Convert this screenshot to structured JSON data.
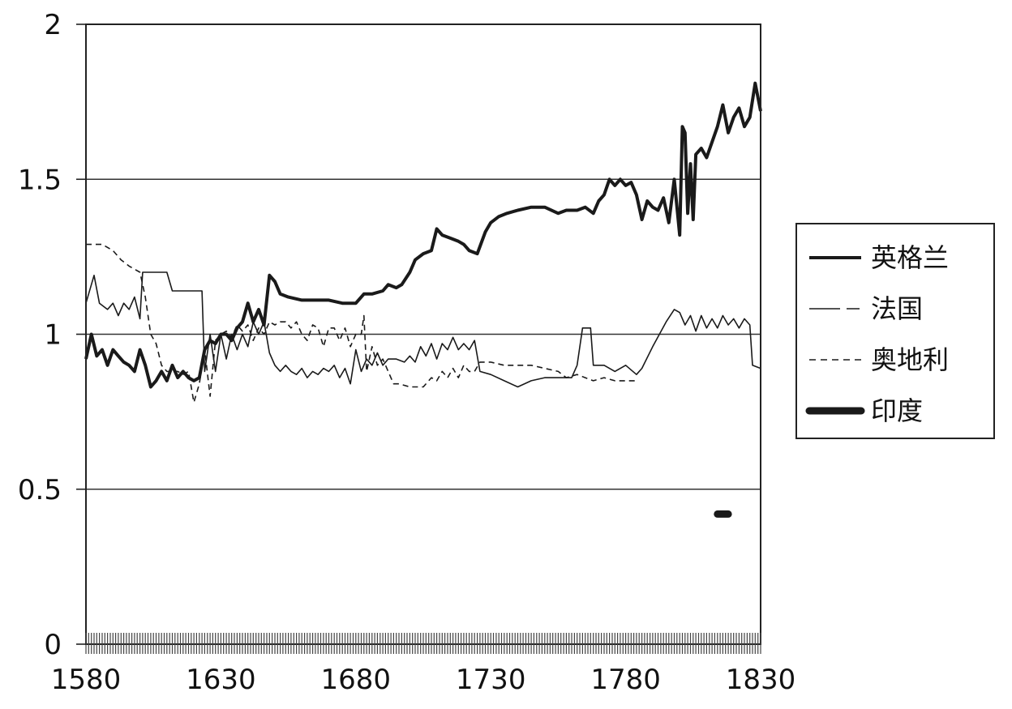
{
  "chart_data": {
    "type": "line",
    "title": "",
    "xlabel": "",
    "ylabel": "",
    "xlim": [
      1580,
      1830
    ],
    "ylim": [
      0,
      2
    ],
    "x_ticks": [
      "1580",
      "1630",
      "1680",
      "1730",
      "1780",
      "1830"
    ],
    "y_ticks": [
      "0",
      "0.5",
      "1",
      "1.5",
      "2"
    ],
    "grid": "horizontal",
    "legend_position": "right",
    "series": [
      {
        "name": "英格兰",
        "style": "solid-medium",
        "color": "#1a1a1a",
        "points": [
          [
            1580,
            0.92
          ],
          [
            1582,
            1.0
          ],
          [
            1584,
            0.93
          ],
          [
            1586,
            0.95
          ],
          [
            1588,
            0.9
          ],
          [
            1590,
            0.95
          ],
          [
            1592,
            0.93
          ],
          [
            1594,
            0.91
          ],
          [
            1596,
            0.9
          ],
          [
            1598,
            0.88
          ],
          [
            1600,
            0.95
          ],
          [
            1602,
            0.9
          ],
          [
            1604,
            0.83
          ],
          [
            1606,
            0.85
          ],
          [
            1608,
            0.88
          ],
          [
            1610,
            0.85
          ],
          [
            1612,
            0.9
          ],
          [
            1614,
            0.86
          ],
          [
            1616,
            0.88
          ],
          [
            1618,
            0.86
          ],
          [
            1620,
            0.85
          ],
          [
            1622,
            0.86
          ],
          [
            1624,
            0.95
          ],
          [
            1626,
            0.98
          ],
          [
            1628,
            0.97
          ],
          [
            1630,
            1.0
          ],
          [
            1632,
            1.0
          ],
          [
            1634,
            0.98
          ],
          [
            1636,
            1.02
          ],
          [
            1638,
            1.04
          ],
          [
            1640,
            1.1
          ],
          [
            1642,
            1.04
          ],
          [
            1644,
            1.08
          ],
          [
            1646,
            1.03
          ],
          [
            1648,
            1.19
          ],
          [
            1650,
            1.17
          ],
          [
            1652,
            1.13
          ],
          [
            1655,
            1.12
          ],
          [
            1660,
            1.11
          ],
          [
            1665,
            1.11
          ],
          [
            1670,
            1.11
          ],
          [
            1675,
            1.1
          ],
          [
            1680,
            1.1
          ],
          [
            1683,
            1.13
          ],
          [
            1686,
            1.13
          ],
          [
            1690,
            1.14
          ],
          [
            1692,
            1.16
          ],
          [
            1695,
            1.15
          ],
          [
            1697,
            1.16
          ],
          [
            1700,
            1.2
          ],
          [
            1702,
            1.24
          ],
          [
            1705,
            1.26
          ],
          [
            1708,
            1.27
          ],
          [
            1710,
            1.34
          ],
          [
            1712,
            1.32
          ],
          [
            1715,
            1.31
          ],
          [
            1718,
            1.3
          ],
          [
            1720,
            1.29
          ],
          [
            1722,
            1.27
          ],
          [
            1725,
            1.26
          ],
          [
            1728,
            1.33
          ],
          [
            1730,
            1.36
          ],
          [
            1733,
            1.38
          ],
          [
            1736,
            1.39
          ],
          [
            1740,
            1.4
          ],
          [
            1745,
            1.41
          ],
          [
            1750,
            1.41
          ],
          [
            1755,
            1.39
          ],
          [
            1758,
            1.4
          ],
          [
            1762,
            1.4
          ],
          [
            1765,
            1.41
          ],
          [
            1768,
            1.39
          ],
          [
            1770,
            1.43
          ],
          [
            1772,
            1.45
          ],
          [
            1774,
            1.5
          ],
          [
            1776,
            1.48
          ],
          [
            1778,
            1.5
          ],
          [
            1780,
            1.48
          ],
          [
            1782,
            1.49
          ],
          [
            1784,
            1.45
          ],
          [
            1786,
            1.37
          ],
          [
            1788,
            1.43
          ],
          [
            1790,
            1.41
          ],
          [
            1792,
            1.4
          ],
          [
            1794,
            1.44
          ],
          [
            1796,
            1.36
          ],
          [
            1798,
            1.5
          ],
          [
            1800,
            1.32
          ],
          [
            1801,
            1.67
          ],
          [
            1802,
            1.65
          ],
          [
            1803,
            1.39
          ],
          [
            1804,
            1.55
          ],
          [
            1805,
            1.37
          ],
          [
            1806,
            1.58
          ],
          [
            1808,
            1.6
          ],
          [
            1810,
            1.57
          ],
          [
            1812,
            1.62
          ],
          [
            1814,
            1.67
          ],
          [
            1816,
            1.74
          ],
          [
            1818,
            1.65
          ],
          [
            1820,
            1.7
          ],
          [
            1822,
            1.73
          ],
          [
            1824,
            1.67
          ],
          [
            1826,
            1.7
          ],
          [
            1828,
            1.81
          ],
          [
            1830,
            1.72
          ]
        ]
      },
      {
        "name": "法国",
        "style": "dash-long",
        "color": "#1a1a1a",
        "points": [
          [
            1580,
            1.1
          ],
          [
            1583,
            1.19
          ],
          [
            1585,
            1.1
          ],
          [
            1588,
            1.08
          ],
          [
            1590,
            1.1
          ],
          [
            1592,
            1.06
          ],
          [
            1594,
            1.1
          ],
          [
            1596,
            1.08
          ],
          [
            1598,
            1.12
          ],
          [
            1600,
            1.05
          ],
          [
            1601,
            1.2
          ],
          [
            1605,
            1.2
          ],
          [
            1610,
            1.2
          ],
          [
            1612,
            1.14
          ],
          [
            1615,
            1.14
          ],
          [
            1620,
            1.14
          ],
          [
            1623,
            1.14
          ],
          [
            1624,
            0.88
          ],
          [
            1626,
            1.0
          ],
          [
            1628,
            0.88
          ],
          [
            1630,
            1.0
          ],
          [
            1632,
            0.92
          ],
          [
            1634,
            1.0
          ],
          [
            1636,
            0.95
          ],
          [
            1638,
            1.0
          ],
          [
            1640,
            0.96
          ],
          [
            1642,
            1.04
          ],
          [
            1644,
            1.0
          ],
          [
            1646,
            1.04
          ],
          [
            1648,
            0.94
          ],
          [
            1650,
            0.9
          ],
          [
            1652,
            0.88
          ],
          [
            1654,
            0.9
          ],
          [
            1656,
            0.88
          ],
          [
            1658,
            0.87
          ],
          [
            1660,
            0.89
          ],
          [
            1662,
            0.86
          ],
          [
            1664,
            0.88
          ],
          [
            1666,
            0.87
          ],
          [
            1668,
            0.89
          ],
          [
            1670,
            0.88
          ],
          [
            1672,
            0.9
          ],
          [
            1674,
            0.86
          ],
          [
            1676,
            0.89
          ],
          [
            1678,
            0.84
          ],
          [
            1680,
            0.95
          ],
          [
            1682,
            0.88
          ],
          [
            1684,
            0.92
          ],
          [
            1686,
            0.9
          ],
          [
            1688,
            0.94
          ],
          [
            1690,
            0.9
          ],
          [
            1692,
            0.92
          ],
          [
            1695,
            0.92
          ],
          [
            1698,
            0.91
          ],
          [
            1700,
            0.93
          ],
          [
            1702,
            0.91
          ],
          [
            1704,
            0.96
          ],
          [
            1706,
            0.93
          ],
          [
            1708,
            0.97
          ],
          [
            1710,
            0.92
          ],
          [
            1712,
            0.97
          ],
          [
            1714,
            0.95
          ],
          [
            1716,
            0.99
          ],
          [
            1718,
            0.95
          ],
          [
            1720,
            0.97
          ],
          [
            1722,
            0.95
          ],
          [
            1724,
            0.98
          ],
          [
            1726,
            0.88
          ],
          [
            1730,
            0.87
          ],
          [
            1735,
            0.85
          ],
          [
            1740,
            0.83
          ],
          [
            1745,
            0.85
          ],
          [
            1750,
            0.86
          ],
          [
            1755,
            0.86
          ],
          [
            1760,
            0.86
          ],
          [
            1762,
            0.9
          ],
          [
            1764,
            1.02
          ],
          [
            1767,
            1.02
          ],
          [
            1768,
            0.9
          ],
          [
            1772,
            0.9
          ],
          [
            1776,
            0.88
          ],
          [
            1780,
            0.9
          ],
          [
            1784,
            0.87
          ],
          [
            1786,
            0.89
          ],
          [
            1790,
            0.96
          ],
          [
            1795,
            1.04
          ],
          [
            1798,
            1.08
          ],
          [
            1800,
            1.07
          ],
          [
            1802,
            1.03
          ],
          [
            1804,
            1.06
          ],
          [
            1806,
            1.01
          ],
          [
            1808,
            1.06
          ],
          [
            1810,
            1.02
          ],
          [
            1812,
            1.05
          ],
          [
            1814,
            1.02
          ],
          [
            1816,
            1.06
          ],
          [
            1818,
            1.03
          ],
          [
            1820,
            1.05
          ],
          [
            1822,
            1.02
          ],
          [
            1824,
            1.05
          ],
          [
            1826,
            1.03
          ],
          [
            1827,
            0.9
          ],
          [
            1830,
            0.89
          ]
        ]
      },
      {
        "name": "奥地利",
        "style": "dash-short",
        "color": "#1a1a1a",
        "points": [
          [
            1580,
            1.29
          ],
          [
            1582,
            1.29
          ],
          [
            1586,
            1.29
          ],
          [
            1590,
            1.27
          ],
          [
            1593,
            1.24
          ],
          [
            1596,
            1.22
          ],
          [
            1600,
            1.2
          ],
          [
            1602,
            1.12
          ],
          [
            1604,
            1.0
          ],
          [
            1606,
            0.97
          ],
          [
            1608,
            0.9
          ],
          [
            1610,
            0.88
          ],
          [
            1612,
            0.88
          ],
          [
            1614,
            0.88
          ],
          [
            1616,
            0.87
          ],
          [
            1618,
            0.88
          ],
          [
            1620,
            0.78
          ],
          [
            1622,
            0.84
          ],
          [
            1624,
            0.95
          ],
          [
            1626,
            0.8
          ],
          [
            1628,
            0.98
          ],
          [
            1630,
            1.0
          ],
          [
            1632,
            1.01
          ],
          [
            1634,
            0.99
          ],
          [
            1636,
            1.03
          ],
          [
            1638,
            1.01
          ],
          [
            1640,
            1.03
          ],
          [
            1642,
            0.98
          ],
          [
            1644,
            1.02
          ],
          [
            1646,
            1.0
          ],
          [
            1648,
            1.04
          ],
          [
            1650,
            1.03
          ],
          [
            1652,
            1.04
          ],
          [
            1654,
            1.04
          ],
          [
            1656,
            1.02
          ],
          [
            1658,
            1.04
          ],
          [
            1660,
            1.0
          ],
          [
            1662,
            0.98
          ],
          [
            1664,
            1.03
          ],
          [
            1666,
            1.02
          ],
          [
            1668,
            0.96
          ],
          [
            1670,
            1.02
          ],
          [
            1672,
            1.02
          ],
          [
            1674,
            0.98
          ],
          [
            1676,
            1.02
          ],
          [
            1678,
            0.96
          ],
          [
            1680,
            1.0
          ],
          [
            1682,
            1.0
          ],
          [
            1683,
            1.06
          ],
          [
            1684,
            0.88
          ],
          [
            1686,
            0.96
          ],
          [
            1688,
            0.9
          ],
          [
            1690,
            0.92
          ],
          [
            1692,
            0.88
          ],
          [
            1694,
            0.84
          ],
          [
            1696,
            0.84
          ],
          [
            1700,
            0.83
          ],
          [
            1705,
            0.83
          ],
          [
            1708,
            0.86
          ],
          [
            1710,
            0.85
          ],
          [
            1712,
            0.88
          ],
          [
            1714,
            0.86
          ],
          [
            1716,
            0.89
          ],
          [
            1718,
            0.86
          ],
          [
            1720,
            0.9
          ],
          [
            1722,
            0.88
          ],
          [
            1724,
            0.88
          ],
          [
            1726,
            0.91
          ],
          [
            1730,
            0.91
          ],
          [
            1735,
            0.9
          ],
          [
            1740,
            0.9
          ],
          [
            1745,
            0.9
          ],
          [
            1750,
            0.89
          ],
          [
            1755,
            0.88
          ],
          [
            1758,
            0.86
          ],
          [
            1762,
            0.87
          ],
          [
            1765,
            0.86
          ],
          [
            1768,
            0.85
          ],
          [
            1772,
            0.86
          ],
          [
            1776,
            0.85
          ],
          [
            1780,
            0.85
          ],
          [
            1784,
            0.85
          ]
        ]
      },
      {
        "name": "印度",
        "style": "solid-heavy",
        "color": "#1a1a1a",
        "points": [
          [
            1814,
            0.42
          ],
          [
            1818,
            0.42
          ]
        ]
      }
    ]
  }
}
